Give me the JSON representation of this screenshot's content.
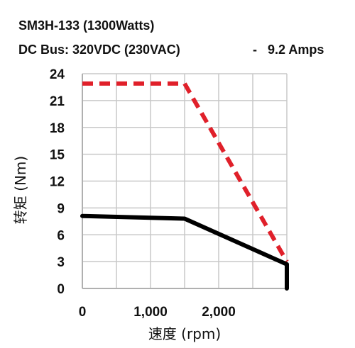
{
  "chart_data": {
    "type": "line",
    "title_line1": "SM3H-133 (1300Watts)",
    "title_line2": "DC Bus: 320VDC (230VAC)",
    "title_suffix": "-   9.2 Amps",
    "xlabel": "速度 (rpm)",
    "ylabel": "转矩 (Nm)",
    "xlim": [
      0,
      3000
    ],
    "ylim": [
      0,
      24
    ],
    "x_ticks": [
      0,
      1000,
      2000
    ],
    "x_tick_labels": [
      "0",
      "1,000",
      "2,000"
    ],
    "y_ticks": [
      0,
      3,
      6,
      9,
      12,
      15,
      18,
      21,
      24
    ],
    "y_tick_labels": [
      "0",
      "3",
      "6",
      "9",
      "12",
      "15",
      "18",
      "21",
      "24"
    ],
    "grid": true,
    "series": [
      {
        "style": "dashed",
        "color": "#e0202a",
        "points": [
          [
            0,
            22.9
          ],
          [
            1500,
            22.9
          ],
          [
            3000,
            3.0
          ]
        ]
      },
      {
        "style": "solid",
        "color": "#000000",
        "points": [
          [
            0,
            8.1
          ],
          [
            1500,
            7.8
          ],
          [
            3000,
            2.7
          ],
          [
            3000,
            0
          ]
        ]
      }
    ]
  }
}
